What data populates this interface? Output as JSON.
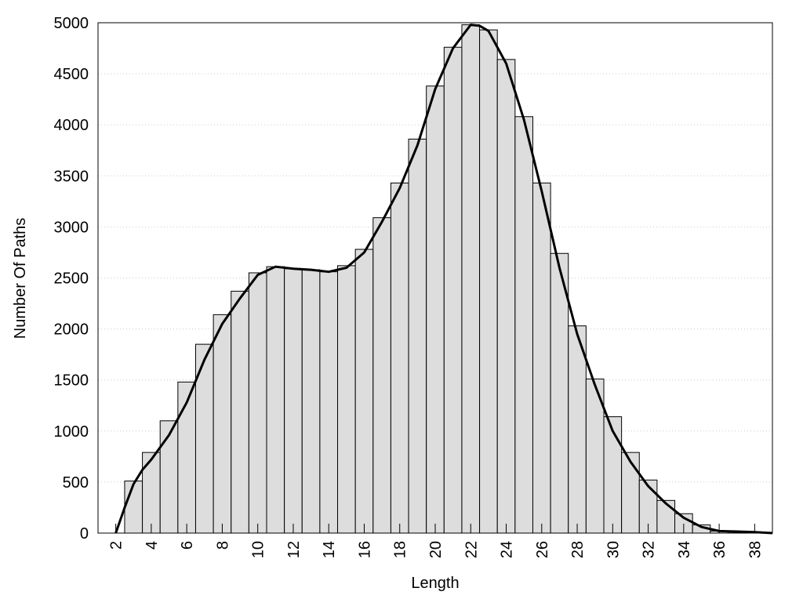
{
  "chart_data": {
    "type": "histogram",
    "xlabel": "Length",
    "ylabel": "Number Of Paths",
    "bins": [
      2.5,
      3.5,
      4.5,
      5.5,
      6.5,
      7.5,
      8.5,
      9.5,
      10.5,
      11.5,
      12.5,
      13.5,
      14.5,
      15.5,
      16.5,
      17.5,
      18.5,
      19.5,
      20.5,
      21.5,
      22.5,
      23.5,
      24.5,
      25.5,
      26.5,
      27.5,
      28.5,
      29.5,
      30.5,
      31.5,
      32.5,
      33.5,
      34.5,
      35.5,
      36.5,
      37.5,
      38.5
    ],
    "values": [
      510,
      790,
      1100,
      1480,
      1850,
      2140,
      2370,
      2550,
      2610,
      2590,
      2580,
      2560,
      2620,
      2780,
      3090,
      3430,
      3860,
      4380,
      4760,
      4980,
      4930,
      4640,
      4080,
      3430,
      2740,
      2030,
      1510,
      1140,
      790,
      520,
      320,
      190,
      80,
      20,
      10,
      10
    ],
    "color": "#dddddd",
    "curve": {
      "x": [
        2,
        2.5,
        3,
        3.5,
        4,
        5,
        6,
        7,
        8,
        9,
        10,
        11,
        12,
        13,
        14,
        15,
        16,
        17,
        18,
        19,
        20,
        21,
        22,
        22.5,
        23,
        24,
        25,
        26,
        27,
        28,
        29,
        30,
        31,
        32,
        33,
        34,
        35,
        36,
        37,
        38,
        39
      ],
      "values": [
        0,
        250,
        480,
        620,
        720,
        960,
        1280,
        1700,
        2050,
        2300,
        2530,
        2610,
        2590,
        2580,
        2560,
        2600,
        2750,
        3050,
        3380,
        3800,
        4350,
        4750,
        4980,
        4970,
        4920,
        4600,
        4050,
        3350,
        2600,
        1950,
        1450,
        1000,
        700,
        460,
        290,
        150,
        60,
        20,
        15,
        10,
        0
      ],
      "color": "#000000"
    },
    "xlim": [
      1,
      39
    ],
    "xticks": [
      2,
      4,
      6,
      8,
      10,
      12,
      14,
      16,
      18,
      20,
      22,
      24,
      26,
      28,
      30,
      32,
      34,
      36,
      38
    ],
    "ylim": [
      0,
      5000
    ],
    "yticks": [
      0,
      500,
      1000,
      1500,
      2000,
      2500,
      3000,
      3500,
      4000,
      4500,
      5000
    ],
    "grid": true
  }
}
